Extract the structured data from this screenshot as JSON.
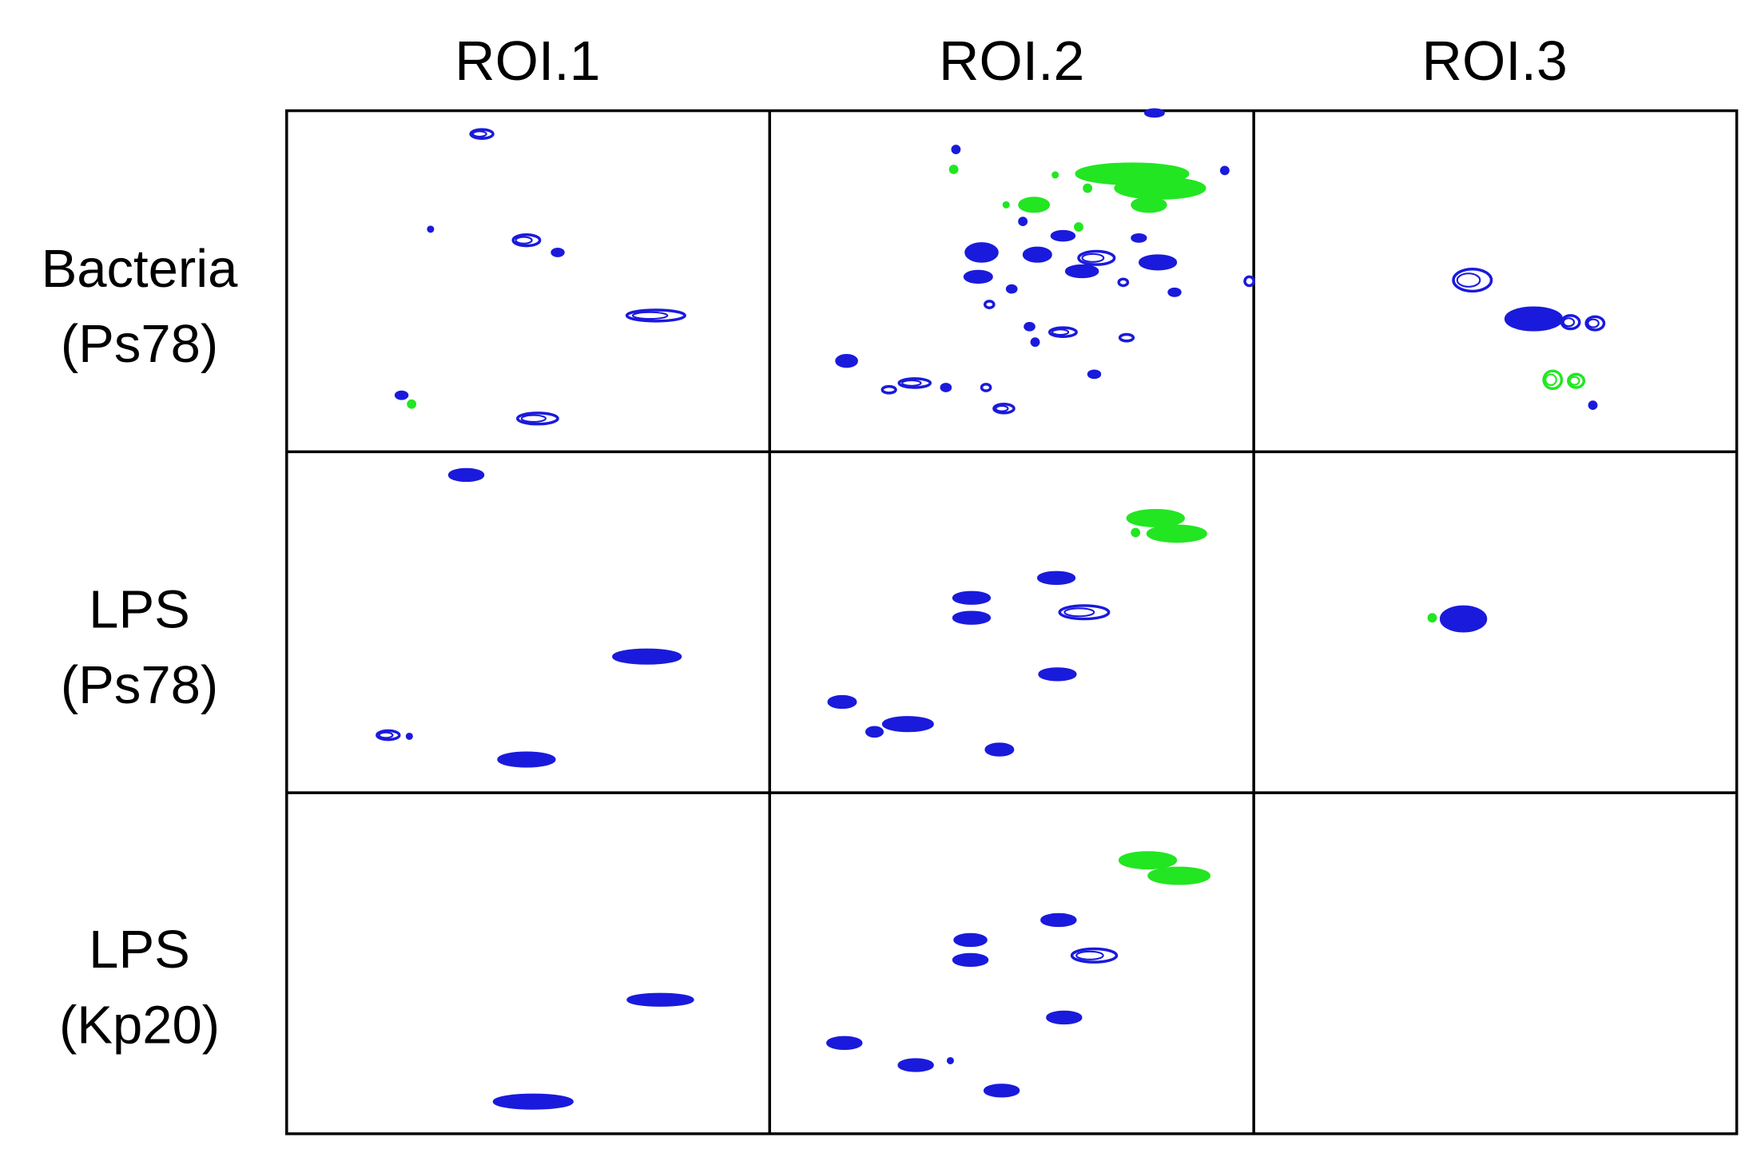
{
  "columns": [
    "ROI.1",
    "ROI.2",
    "ROI.3"
  ],
  "rows": [
    {
      "name": "Bacteria",
      "strain": "(Ps78)"
    },
    {
      "name": "LPS",
      "strain": "(Ps78)"
    },
    {
      "name": "LPS",
      "strain": "(Kp20)"
    }
  ]
}
